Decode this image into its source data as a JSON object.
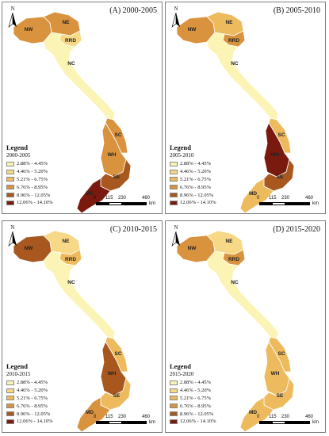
{
  "panels": [
    {
      "title": "(A) 2000-2005",
      "period": "2000-2005",
      "regions": {
        "NW": 3,
        "NE": 3,
        "RRD": 1,
        "NC": 0,
        "SC": 3,
        "WH": 3,
        "SE": 4,
        "MD": 5
      }
    },
    {
      "title": "(B) 2005-2010",
      "period": "2005-2010",
      "regions": {
        "NW": 3,
        "NE": 2,
        "RRD": 3,
        "NC": 0,
        "SC": 2,
        "WH": 5,
        "SE": 4,
        "MD": 2
      }
    },
    {
      "title": "(C) 2010-2015",
      "period": "2010-2015",
      "regions": {
        "NW": 4,
        "NE": 1,
        "RRD": 2,
        "NC": 0,
        "SC": 2,
        "WH": 4,
        "SE": 2,
        "MD": 3
      }
    },
    {
      "title": "(D) 2015-2020",
      "period": "2015-2020",
      "regions": {
        "NW": 3,
        "NE": 1,
        "RRD": 3,
        "NC": 0,
        "SC": 2,
        "WH": 2,
        "SE": 2,
        "MD": 2
      }
    }
  ],
  "region_labels": [
    "NW",
    "NE",
    "RRD",
    "NC",
    "SC",
    "WH",
    "SE",
    "MD"
  ],
  "legend": {
    "title": "Legend",
    "classes": [
      {
        "label": "2.88% - 4.45%",
        "color": "#fbf4b5"
      },
      {
        "label": "4.46% - 5.20%",
        "color": "#f6d886"
      },
      {
        "label": "5.21% - 6.75%",
        "color": "#edbb5e"
      },
      {
        "label": "6.76% - 8.95%",
        "color": "#d9933e"
      },
      {
        "label": "8.96% - 12.05%",
        "color": "#a8581f"
      },
      {
        "label": "12.06% - 14.10%",
        "color": "#7a1a0e"
      }
    ]
  },
  "north_label": "N",
  "scale": {
    "ticks": [
      "0",
      "115",
      "230",
      "460"
    ],
    "unit": "km"
  }
}
